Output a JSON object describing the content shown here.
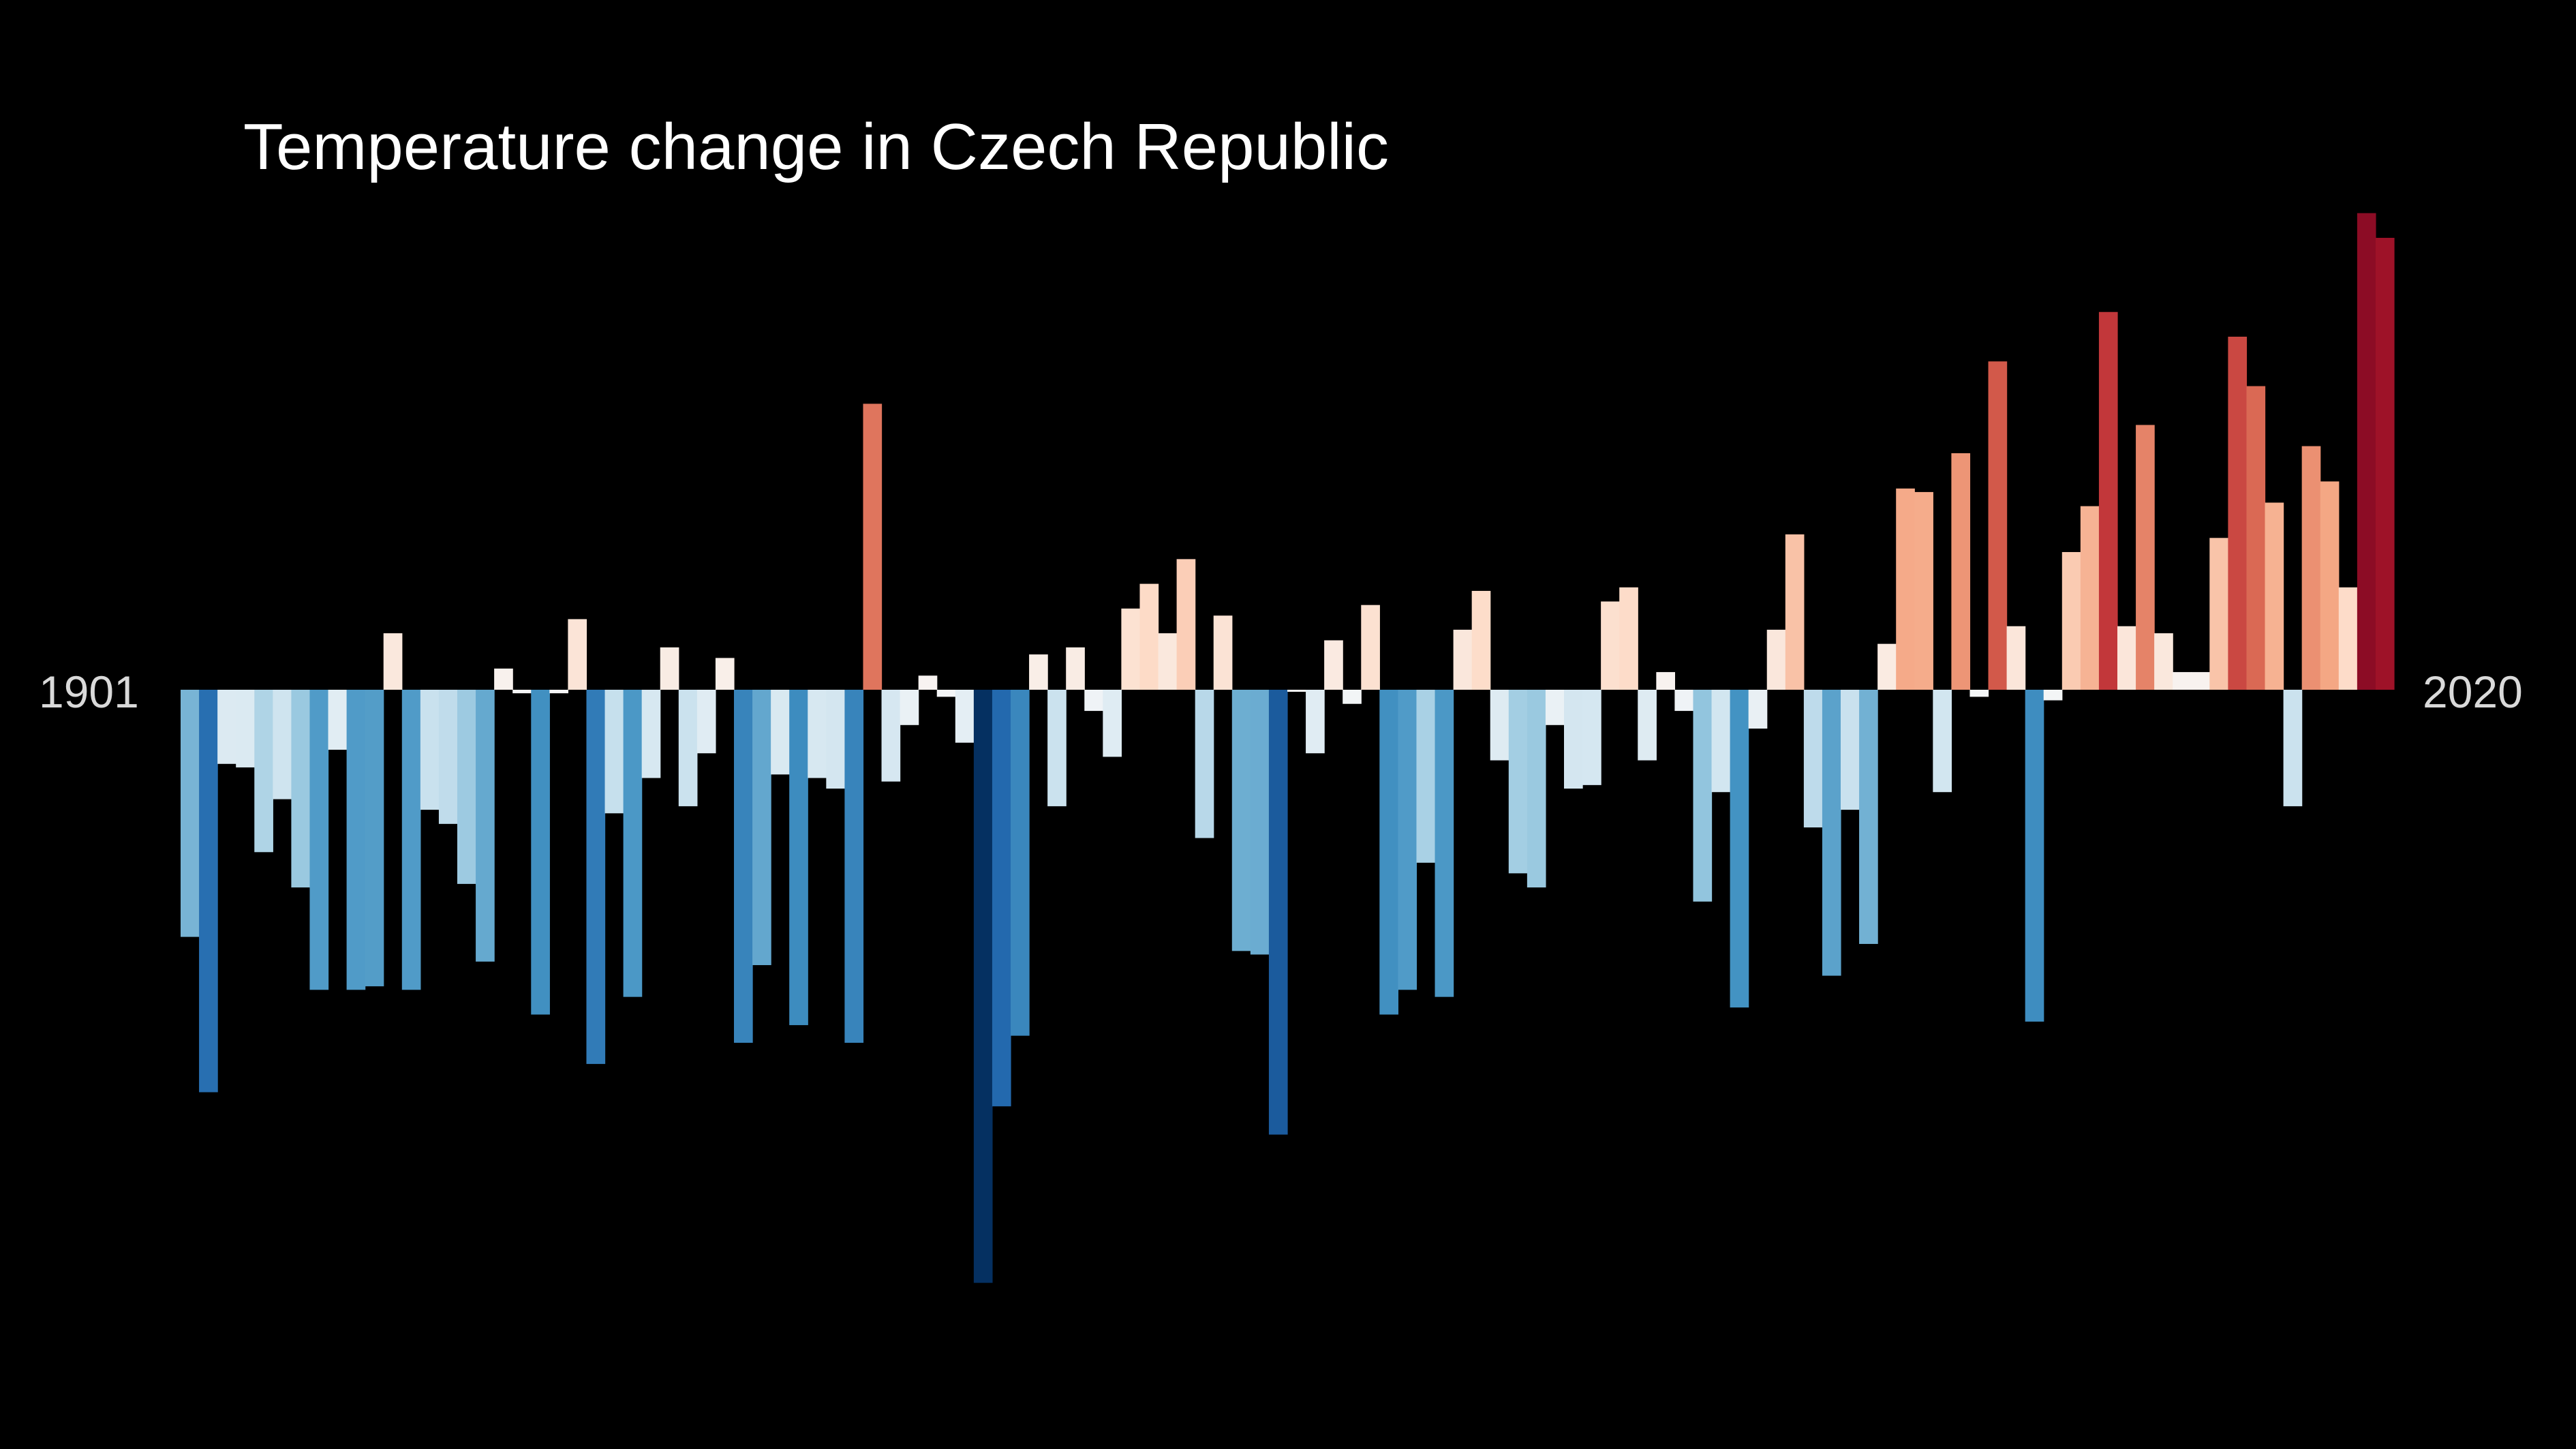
{
  "chart_data": {
    "type": "bar",
    "title": "Temperature change in Czech Republic",
    "start_label": "1901",
    "end_label": "2020",
    "x_start": 1901,
    "x_end": 2020,
    "xlabel": "",
    "ylabel": "",
    "grid": false,
    "legend": "none",
    "value_unit": "°C anomaly (estimated, relative)",
    "ylim": [
      -1.7,
      1.5
    ],
    "colors": {
      "background": "#000000",
      "title": "#ffffff",
      "labels": "#d9d9d9",
      "colormap": "RdBu_r"
    },
    "values": [
      -0.7,
      -1.14,
      -0.21,
      -0.22,
      -0.46,
      -0.31,
      -0.56,
      -0.85,
      -0.17,
      -0.85,
      -0.84,
      0.16,
      -0.85,
      -0.34,
      -0.38,
      -0.55,
      -0.77,
      0.06,
      -0.01,
      -0.92,
      -0.01,
      0.2,
      -1.06,
      -0.35,
      -0.87,
      -0.25,
      0.12,
      -0.33,
      -0.18,
      0.09,
      -1.0,
      -0.78,
      -0.24,
      -0.95,
      -0.25,
      -0.28,
      -1.0,
      0.81,
      -0.26,
      -0.1,
      0.04,
      -0.02,
      -0.15,
      -1.68,
      -1.18,
      -0.98,
      0.1,
      -0.33,
      0.12,
      -0.06,
      -0.19,
      0.23,
      0.3,
      0.16,
      0.37,
      -0.42,
      0.21,
      -0.74,
      -0.75,
      -1.26,
      0.0,
      -0.18,
      0.14,
      -0.04,
      0.24,
      -0.92,
      -0.85,
      -0.49,
      -0.87,
      0.17,
      0.28,
      -0.2,
      -0.52,
      -0.56,
      -0.1,
      -0.28,
      -0.27,
      0.25,
      0.29,
      -0.2,
      0.05,
      -0.06,
      -0.6,
      -0.29,
      -0.9,
      -0.11,
      0.17,
      0.44,
      -0.39,
      -0.81,
      -0.34,
      -0.72,
      0.13,
      0.57,
      0.56,
      -0.29,
      0.67,
      -0.02,
      0.93,
      0.18,
      -0.94,
      -0.03,
      0.39,
      0.52,
      1.07,
      0.18,
      0.75,
      0.16,
      0.05,
      0.05,
      0.43,
      1.0,
      0.86,
      0.53,
      -0.33,
      0.69,
      0.59,
      0.29,
      1.35,
      1.28
    ]
  }
}
